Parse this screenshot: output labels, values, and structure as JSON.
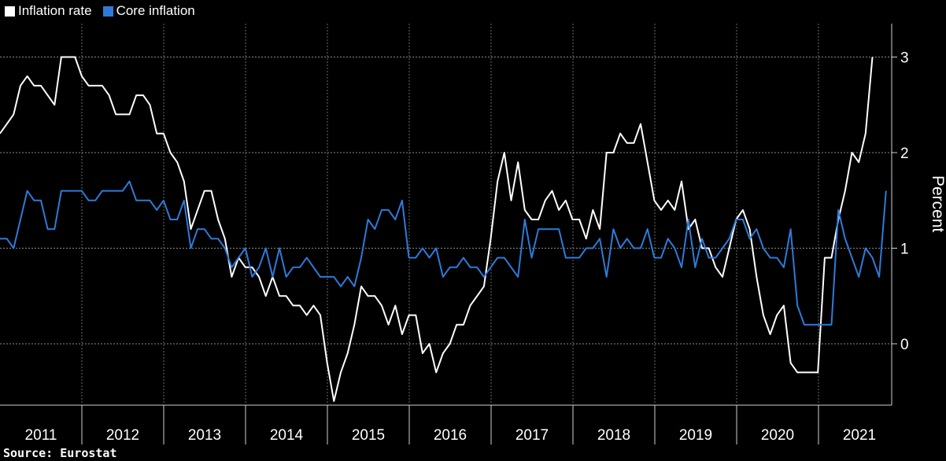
{
  "chart_data": {
    "type": "line",
    "source": "Source:  Eurostat",
    "ylabel": "Percent",
    "ylim": [
      -0.6,
      3.3
    ],
    "yticks": [
      "3",
      "2",
      "1",
      "0"
    ],
    "x_labels": [
      "2011",
      "2012",
      "2013",
      "2014",
      "2015",
      "2016",
      "2017",
      "2018",
      "2019",
      "2020",
      "2021"
    ],
    "legend_position": "top-left",
    "series": [
      {
        "name": "Inflation rate",
        "color": "#ffffff",
        "values": [
          2.2,
          2.3,
          2.4,
          2.7,
          2.8,
          2.7,
          2.7,
          2.6,
          2.5,
          3.0,
          3.0,
          3.0,
          2.8,
          2.7,
          2.7,
          2.7,
          2.6,
          2.4,
          2.4,
          2.4,
          2.6,
          2.6,
          2.5,
          2.2,
          2.2,
          2.0,
          1.9,
          1.7,
          1.2,
          1.4,
          1.6,
          1.6,
          1.3,
          1.1,
          0.7,
          0.9,
          0.8,
          0.8,
          0.7,
          0.5,
          0.7,
          0.5,
          0.5,
          0.4,
          0.4,
          0.3,
          0.4,
          0.3,
          -0.2,
          -0.6,
          -0.3,
          -0.1,
          0.2,
          0.6,
          0.5,
          0.5,
          0.4,
          0.2,
          0.4,
          0.1,
          0.3,
          0.3,
          -0.1,
          0.0,
          -0.3,
          -0.1,
          0.0,
          0.2,
          0.2,
          0.4,
          0.5,
          0.6,
          1.1,
          1.7,
          2.0,
          1.5,
          1.9,
          1.4,
          1.3,
          1.3,
          1.5,
          1.6,
          1.4,
          1.5,
          1.3,
          1.3,
          1.1,
          1.4,
          1.2,
          2.0,
          2.0,
          2.2,
          2.1,
          2.1,
          2.3,
          1.9,
          1.5,
          1.4,
          1.5,
          1.4,
          1.7,
          1.2,
          1.3,
          1.0,
          1.0,
          0.8,
          0.7,
          1.0,
          1.3,
          1.4,
          1.2,
          0.7,
          0.3,
          0.1,
          0.3,
          0.4,
          -0.2,
          -0.3,
          -0.3,
          -0.3,
          -0.3,
          0.9,
          0.9,
          1.3,
          1.6,
          2.0,
          1.9,
          2.2,
          3.0
        ]
      },
      {
        "name": "Core inflation",
        "color": "#2f7ad9",
        "values": [
          1.1,
          1.1,
          1.0,
          1.3,
          1.6,
          1.5,
          1.5,
          1.2,
          1.2,
          1.6,
          1.6,
          1.6,
          1.6,
          1.5,
          1.5,
          1.6,
          1.6,
          1.6,
          1.6,
          1.7,
          1.5,
          1.5,
          1.5,
          1.4,
          1.5,
          1.3,
          1.3,
          1.5,
          1.0,
          1.2,
          1.2,
          1.1,
          1.1,
          1.0,
          0.8,
          0.9,
          1.0,
          0.7,
          0.8,
          1.0,
          0.7,
          1.0,
          0.7,
          0.8,
          0.8,
          0.9,
          0.8,
          0.7,
          0.7,
          0.7,
          0.6,
          0.7,
          0.6,
          0.9,
          1.3,
          1.2,
          1.4,
          1.4,
          1.3,
          1.5,
          0.9,
          0.9,
          1.0,
          0.9,
          1.0,
          0.7,
          0.8,
          0.8,
          0.9,
          0.8,
          0.8,
          0.7,
          0.8,
          0.9,
          0.9,
          0.8,
          0.7,
          1.3,
          0.9,
          1.2,
          1.2,
          1.2,
          1.2,
          0.9,
          0.9,
          0.9,
          1.0,
          1.0,
          1.1,
          0.7,
          1.2,
          1.0,
          1.1,
          1.0,
          1.0,
          1.2,
          0.9,
          0.9,
          1.1,
          1.0,
          0.8,
          1.3,
          0.8,
          1.1,
          0.9,
          0.9,
          1.0,
          1.1,
          1.3,
          1.3,
          1.1,
          1.2,
          1.0,
          0.9,
          0.9,
          0.8,
          1.2,
          0.4,
          0.2,
          0.2,
          0.2,
          0.2,
          0.2,
          1.4,
          1.1,
          0.9,
          0.7,
          1.0,
          0.9,
          0.7,
          1.6
        ]
      }
    ]
  }
}
